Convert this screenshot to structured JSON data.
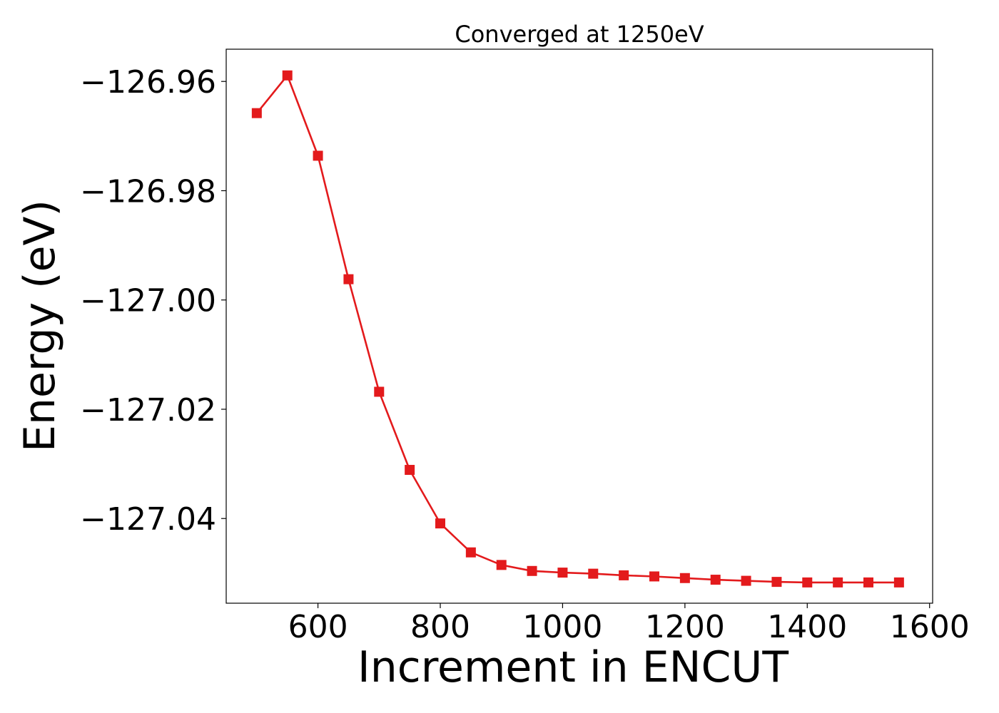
{
  "chart_data": {
    "type": "line",
    "title": "Converged at 1250eV",
    "xlabel": "Increment in ENCUT",
    "ylabel": "Energy (eV)",
    "xlim": [
      450,
      1605
    ],
    "ylim": [
      -127.0555,
      -126.9541
    ],
    "xticks": [
      600,
      800,
      1000,
      1200,
      1400,
      1600
    ],
    "xtick_labels": [
      "600",
      "800",
      "1000",
      "1200",
      "1400",
      "1600"
    ],
    "yticks": [
      -126.96,
      -126.98,
      -127.0,
      -127.02,
      -127.04
    ],
    "ytick_labels": [
      "−126.96",
      "−126.98",
      "−127.00",
      "−127.02",
      "−127.04"
    ],
    "grid": false,
    "marker": "square",
    "color": "#e31a1c",
    "series": [
      {
        "x": [
          500,
          550,
          600,
          650,
          700,
          750,
          800,
          850,
          900,
          950,
          1000,
          1050,
          1100,
          1150,
          1200,
          1250,
          1300,
          1350,
          1400,
          1450,
          1500,
          1550
        ],
        "values": [
          -126.9658,
          -126.9589,
          -126.9736,
          -126.9962,
          -127.0168,
          -127.0311,
          -127.0409,
          -127.0462,
          -127.0485,
          -127.0496,
          -127.0499,
          -127.0501,
          -127.0504,
          -127.0506,
          -127.0509,
          -127.0512,
          -127.0514,
          -127.0516,
          -127.0517,
          -127.0517,
          -127.0517,
          -127.0517
        ]
      }
    ]
  }
}
